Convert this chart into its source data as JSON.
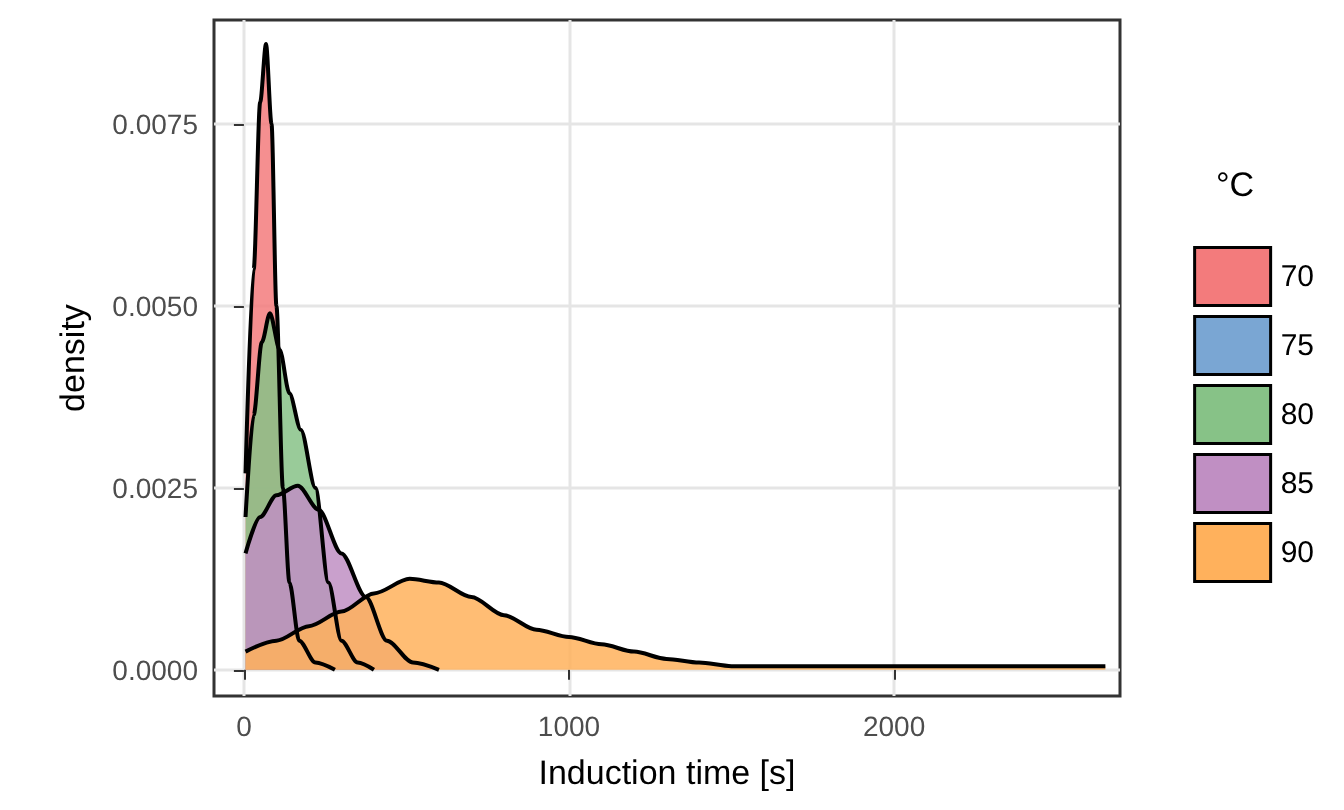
{
  "chart_data": {
    "type": "area",
    "xlabel": "Induction time [s]",
    "ylabel": "density",
    "legend_title": "°C",
    "legend": "right",
    "grid": true,
    "marker": "none",
    "line_style": "solid",
    "xlim": [
      -92,
      2695
    ],
    "xticks": [
      0,
      1000,
      2000
    ],
    "ylim": [
      -0.00036,
      0.00893
    ],
    "yticks": [
      {
        "value": 0,
        "label": "0.0000"
      },
      {
        "value": 0.0025,
        "label": "0.0025"
      },
      {
        "value": 0.005,
        "label": "0.0050"
      },
      {
        "value": 0.0075,
        "label": "0.0075"
      }
    ],
    "series": [
      {
        "name": "70",
        "color": "#f37b7c",
        "x": [
          5,
          30,
          50,
          68,
          85,
          100,
          120,
          140,
          170,
          220,
          280
        ],
        "values": [
          0.0027,
          0.0055,
          0.0078,
          0.0086,
          0.0075,
          0.005,
          0.0025,
          0.0012,
          0.0004,
          0.0001,
          0
        ]
      },
      {
        "name": "75",
        "color": "#7aa6d3"
      },
      {
        "name": "80",
        "color": "#87c287",
        "x": [
          5,
          30,
          55,
          80,
          110,
          140,
          175,
          220,
          260,
          300,
          350,
          400
        ],
        "values": [
          0.0021,
          0.0035,
          0.0045,
          0.0049,
          0.0044,
          0.0038,
          0.0033,
          0.0025,
          0.0012,
          0.0004,
          0.0001,
          0
        ]
      },
      {
        "name": "85",
        "color": "#c08fc3",
        "x": [
          5,
          50,
          100,
          166,
          230,
          300,
          375,
          440,
          520,
          600
        ],
        "values": [
          0.0016,
          0.0021,
          0.0024,
          0.00253,
          0.0022,
          0.0016,
          0.001,
          0.0004,
          0.0001,
          0
        ]
      },
      {
        "name": "90",
        "color": "#ffb15c",
        "x": [
          5,
          100,
          200,
          300,
          400,
          510,
          600,
          700,
          800,
          900,
          1000,
          1100,
          1200,
          1300,
          1400,
          1500,
          1700,
          1900,
          2100,
          2300,
          2500,
          2650
        ],
        "values": [
          0.00025,
          0.0004,
          0.0006,
          0.0008,
          0.00105,
          0.00125,
          0.0012,
          0.001,
          0.00075,
          0.00055,
          0.00045,
          0.00035,
          0.00025,
          0.00015,
          0.0001,
          5e-05,
          5e-05,
          5e-05,
          5e-05,
          5e-05,
          5e-05,
          5e-05
        ]
      }
    ]
  }
}
